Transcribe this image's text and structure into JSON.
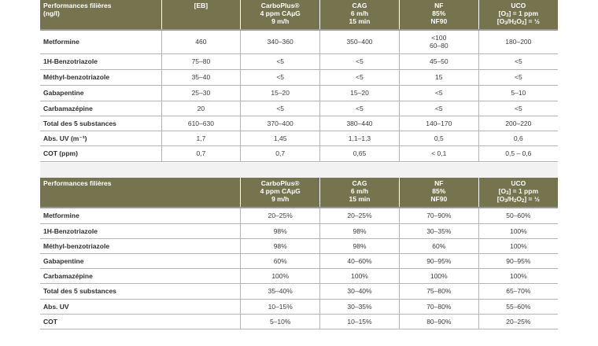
{
  "table1": {
    "headers": [
      {
        "lines": [
          "Performances filières",
          "(ng/l)"
        ]
      },
      {
        "lines": [
          "[EB]"
        ]
      },
      {
        "lines": [
          "CarboPlus®",
          "4 ppm CAµG",
          "9 m/h"
        ]
      },
      {
        "lines": [
          "CAG",
          "6 m/h",
          "15 min"
        ]
      },
      {
        "lines": [
          "NF",
          "85%",
          "NF90"
        ]
      },
      {
        "lines": [
          "UCO",
          "[O3] = 1 ppm",
          "[O3/H2O2] = ½"
        ]
      }
    ],
    "rows": [
      {
        "label": "Metformine",
        "cells": [
          "460",
          "340–360",
          "350–400",
          "<100\n60–80",
          "180–200"
        ]
      },
      {
        "label": "1H-Benzotriazole",
        "cells": [
          "75–80",
          "<5",
          "<5",
          "45–50",
          "<5"
        ]
      },
      {
        "label": "Méthyl-benzotriazole",
        "cells": [
          "35–40",
          "<5",
          "<5",
          "15",
          "<5"
        ]
      },
      {
        "label": "Gabapentine",
        "cells": [
          "25–30",
          "15–20",
          "15–20",
          "<5",
          "5–10"
        ]
      },
      {
        "label": "Carbamazépine",
        "cells": [
          "20",
          "<5",
          "<5",
          "<5",
          "<5"
        ]
      },
      {
        "label": "Total des 5 substances",
        "cells": [
          "610–630",
          "370–400",
          "380–440",
          "140–170",
          "200–220"
        ]
      },
      {
        "label": "Abs. UV (m⁻¹)",
        "cells": [
          "1,7",
          "1,45",
          "1,1–1,3",
          "0,5",
          "0,6"
        ]
      },
      {
        "label": "COT (ppm)",
        "cells": [
          "0,7",
          "0,7",
          "0,65",
          "< 0,1",
          "0,5 – 0,6"
        ]
      }
    ]
  },
  "table2": {
    "headers": [
      {
        "lines": [
          "Performances filières"
        ]
      },
      {
        "lines": [
          "CarboPlus®",
          "4 ppm CAµG",
          "9 m/h"
        ]
      },
      {
        "lines": [
          "CAG",
          "6 m/h",
          "15 min"
        ]
      },
      {
        "lines": [
          "NF",
          "85%",
          "NF90"
        ]
      },
      {
        "lines": [
          "UCO",
          "[O3] = 1 ppm",
          "[O3/H2O2] = ½"
        ]
      }
    ],
    "rows": [
      {
        "label": "Metformine",
        "cells": [
          "20–25%",
          "20–25%",
          "70–90%",
          "50–60%"
        ]
      },
      {
        "label": "1H-Benzotriazole",
        "cells": [
          "98%",
          "98%",
          "30–35%",
          "100%"
        ]
      },
      {
        "label": "Méthyl-benzotriazole",
        "cells": [
          "98%",
          "98%",
          "60%",
          "100%"
        ]
      },
      {
        "label": "Gabapentine",
        "cells": [
          "60%",
          "40–60%",
          "90–95%",
          "90–95%"
        ]
      },
      {
        "label": "Carbamazépine",
        "cells": [
          "100%",
          "100%",
          "100%",
          "100%"
        ]
      },
      {
        "label": "Total des 5 substances",
        "cells": [
          "35–40%",
          "30–40%",
          "75–80%",
          "65–70%"
        ]
      },
      {
        "label": "Abs. UV",
        "cells": [
          "10–15%",
          "30–35%",
          "70–80%",
          "55–60%"
        ]
      },
      {
        "label": "COT",
        "cells": [
          "5–10%",
          "10–15%",
          "80–90%",
          "20–25%"
        ]
      }
    ]
  },
  "colors": {
    "header_bg": "#76734f",
    "header_text": "#ffffff",
    "rule": "#b5b5b5",
    "gap_bg": "#f2f2f2"
  }
}
